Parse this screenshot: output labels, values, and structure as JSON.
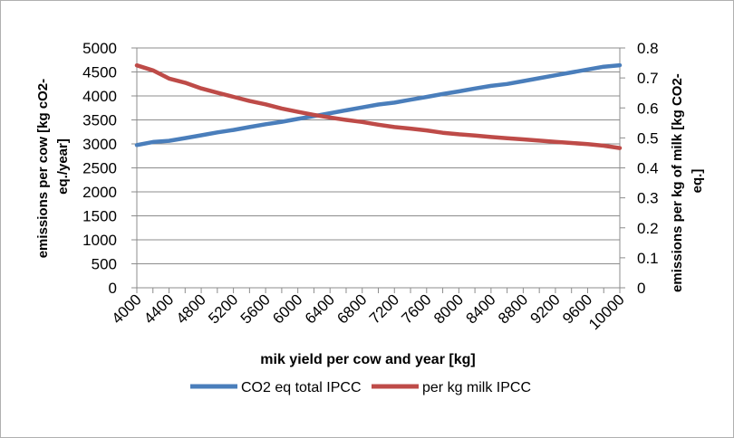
{
  "chart_data": {
    "type": "line",
    "title": "",
    "xlabel": "mik yield per cow and year [kg]",
    "ylabel_left": "emissions per cow  [kg cO2-eq./year]",
    "ylabel_right": "emissions per kg of milk [kg CO2-eq.]",
    "x": [
      4000,
      4200,
      4400,
      4600,
      4800,
      5000,
      5200,
      5400,
      5600,
      5800,
      6000,
      6200,
      6400,
      6600,
      6800,
      7000,
      7200,
      7400,
      7600,
      7800,
      8000,
      8200,
      8400,
      8600,
      8800,
      9000,
      9200,
      9400,
      9600,
      9800,
      10000
    ],
    "x_tick_labels": [
      "4000",
      "4400",
      "4800",
      "5200",
      "5600",
      "6000",
      "6400",
      "6800",
      "7200",
      "7600",
      "8000",
      "8400",
      "8800",
      "9200",
      "9600",
      "10000"
    ],
    "ylim_left": [
      0,
      5000
    ],
    "yticks_left": [
      0,
      500,
      1000,
      1500,
      2000,
      2500,
      3000,
      3500,
      4000,
      4500,
      5000
    ],
    "ylim_right": [
      0,
      0.8
    ],
    "yticks_right": [
      "0",
      "0.1",
      "0.2",
      "0.3",
      "0.4",
      "0.5",
      "0.6",
      "0.7",
      "0.8"
    ],
    "grid": true,
    "legend_position": "bottom",
    "series": [
      {
        "name": "CO2 eq total  IPCC",
        "axis": "left",
        "color": "#4a7ebb",
        "values": [
          2975,
          3040,
          3065,
          3120,
          3180,
          3240,
          3290,
          3350,
          3410,
          3460,
          3520,
          3580,
          3640,
          3700,
          3760,
          3820,
          3860,
          3920,
          3980,
          4040,
          4095,
          4155,
          4210,
          4250,
          4310,
          4370,
          4430,
          4490,
          4550,
          4610,
          4640
        ]
      },
      {
        "name": "per kg milk IPCC",
        "axis": "right",
        "color": "#be4b48",
        "values": [
          0.742,
          0.725,
          0.698,
          0.684,
          0.665,
          0.651,
          0.637,
          0.623,
          0.612,
          0.598,
          0.587,
          0.577,
          0.568,
          0.56,
          0.553,
          0.544,
          0.536,
          0.531,
          0.525,
          0.517,
          0.512,
          0.508,
          0.503,
          0.499,
          0.495,
          0.491,
          0.487,
          0.483,
          0.479,
          0.474,
          0.466
        ]
      }
    ]
  }
}
